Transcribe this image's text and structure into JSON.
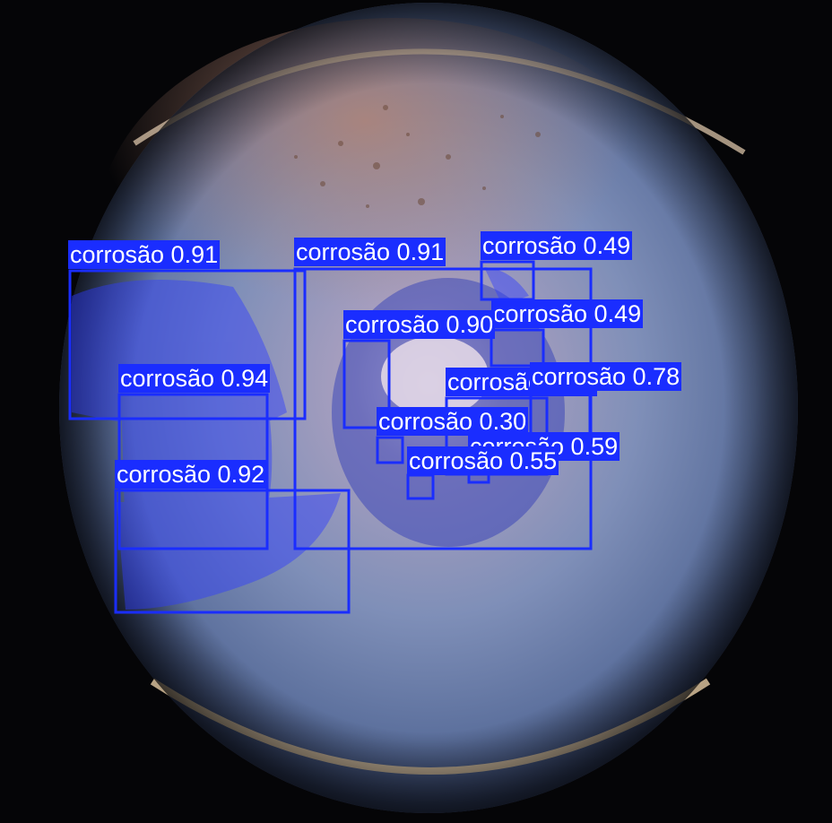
{
  "scene": {
    "description_icon": "corroded-pipe-interior-photo",
    "palette": {
      "box": "#1a2dff",
      "mask": "#2f3cff",
      "label_text": "#ffffff"
    }
  },
  "detections": [
    {
      "id": "d1",
      "label": "corrosão 0.91"
    },
    {
      "id": "d2",
      "label": "corrosão 0.91"
    },
    {
      "id": "d3",
      "label": "corrosão 0.49"
    },
    {
      "id": "d4",
      "label": "corrosão 0.49"
    },
    {
      "id": "d5",
      "label": "corrosão 0.90"
    },
    {
      "id": "d6",
      "label": "corrosão 0.94"
    },
    {
      "id": "d7",
      "label": "corrosão 0.97"
    },
    {
      "id": "d8",
      "label": "corrosão 0.78"
    },
    {
      "id": "d9",
      "label": "corrosão 0.30"
    },
    {
      "id": "d10",
      "label": "corrosão 0.59"
    },
    {
      "id": "d11",
      "label": "corrosão 0.55"
    },
    {
      "id": "d12",
      "label": "corrosão 0.92"
    }
  ]
}
